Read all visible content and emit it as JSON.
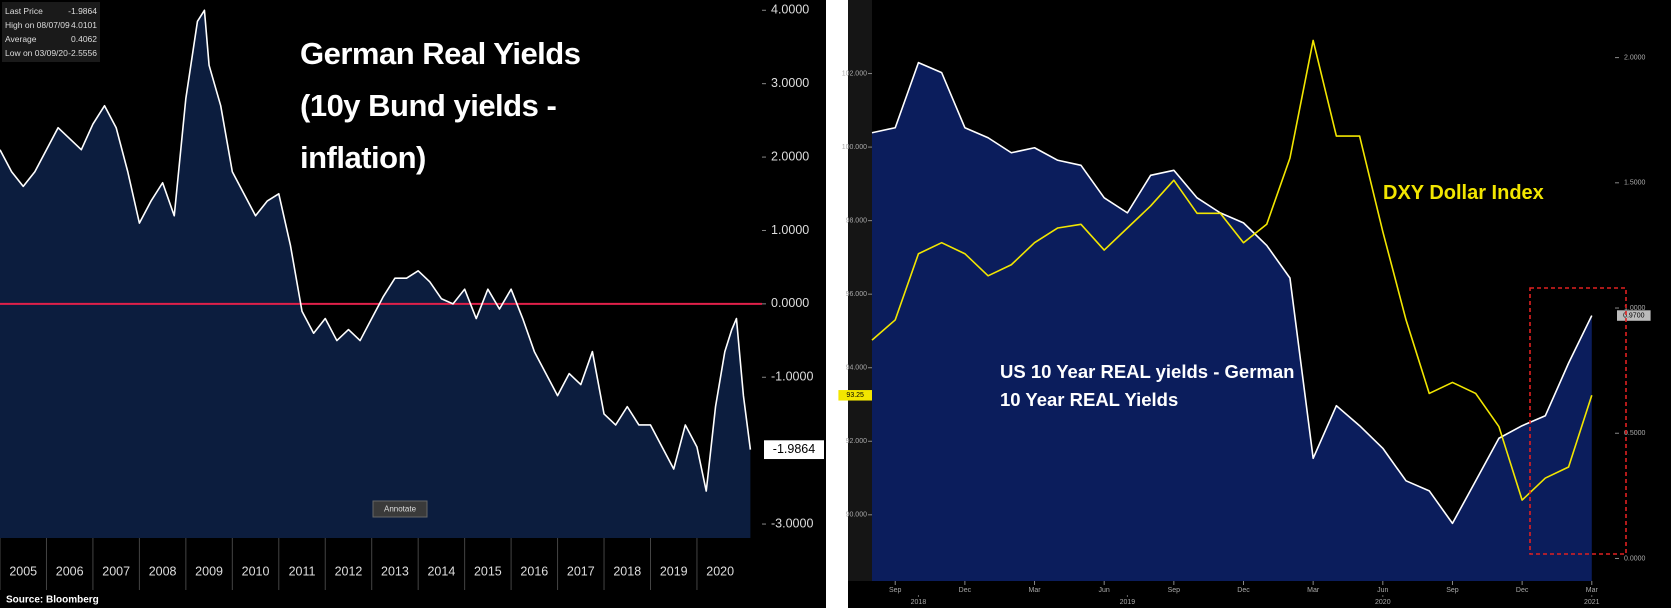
{
  "chart_data": [
    {
      "type": "line",
      "title": "German Real Yields (10y Bund yields - inflation)",
      "source": "Source: Bloomberg",
      "annotate_button": "Annotate",
      "stats": [
        {
          "label": "Last Price",
          "value": "-1.9864"
        },
        {
          "label": "High on 08/07/09",
          "value": "4.0101"
        },
        {
          "label": "Average",
          "value": "0.4062"
        },
        {
          "label": "Low on 03/09/20",
          "value": "-2.5556"
        }
      ],
      "x": [
        2005,
        2005.25,
        2005.5,
        2005.75,
        2006,
        2006.25,
        2006.5,
        2006.75,
        2007,
        2007.25,
        2007.5,
        2007.75,
        2008,
        2008.25,
        2008.5,
        2008.75,
        2009,
        2009.25,
        2009.4,
        2009.5,
        2009.75,
        2010,
        2010.25,
        2010.5,
        2010.75,
        2011,
        2011.25,
        2011.5,
        2011.75,
        2012,
        2012.25,
        2012.5,
        2012.75,
        2013,
        2013.25,
        2013.5,
        2013.75,
        2014,
        2014.25,
        2014.5,
        2014.75,
        2015,
        2015.25,
        2015.5,
        2015.75,
        2016,
        2016.25,
        2016.5,
        2016.75,
        2017,
        2017.25,
        2017.5,
        2017.75,
        2018,
        2018.25,
        2018.5,
        2018.75,
        2019,
        2019.25,
        2019.5,
        2019.75,
        2020,
        2020.2,
        2020.4,
        2020.6,
        2020.75,
        2020.85,
        2021,
        2021.15
      ],
      "values": [
        2.1,
        1.8,
        1.6,
        1.8,
        2.1,
        2.4,
        2.25,
        2.1,
        2.45,
        2.7,
        2.4,
        1.8,
        1.1,
        1.4,
        1.65,
        1.2,
        2.8,
        3.85,
        4.0,
        3.25,
        2.7,
        1.8,
        1.5,
        1.2,
        1.4,
        1.5,
        0.8,
        -0.1,
        -0.4,
        -0.2,
        -0.5,
        -0.35,
        -0.5,
        -0.2,
        0.1,
        0.35,
        0.35,
        0.45,
        0.3,
        0.07,
        0,
        0.2,
        -0.2,
        0.2,
        -0.07,
        0.2,
        -0.2,
        -0.65,
        -0.95,
        -1.25,
        -0.95,
        -1.1,
        -0.65,
        -1.5,
        -1.65,
        -1.4,
        -1.65,
        -1.65,
        -1.95,
        -2.25,
        -1.65,
        -1.95,
        -2.55,
        -1.4,
        -0.65,
        -0.35,
        -0.2,
        -1.25,
        -1.9864
      ],
      "color": "#ffffff",
      "area_color": "#0c1d3e",
      "last_value_label": "-1.9864",
      "xlim": [
        2005,
        2021.4
      ],
      "xticks": [
        2005,
        2006,
        2007,
        2008,
        2009,
        2010,
        2011,
        2012,
        2013,
        2014,
        2015,
        2016,
        2017,
        2018,
        2019,
        2020
      ],
      "ylim": [
        -3.19,
        4.14
      ],
      "yticks": [
        {
          "value": 4,
          "label": "4.0000"
        },
        {
          "value": 3,
          "label": "3.0000"
        },
        {
          "value": 2,
          "label": "2.0000"
        },
        {
          "value": 1,
          "label": "1.0000"
        },
        {
          "value": 0,
          "label": "0.0000"
        },
        {
          "value": -1,
          "label": "-1.0000"
        },
        {
          "value": -3,
          "label": "-3.0000"
        }
      ],
      "y_axis_side": "right",
      "hline": 0,
      "hline_color": "#e0204a"
    },
    {
      "type": "line",
      "x": [
        "2018-08",
        "2018-09",
        "2018-10",
        "2018-11",
        "2018-12",
        "2019-01",
        "2019-02",
        "2019-03",
        "2019-04",
        "2019-05",
        "2019-06",
        "2019-07",
        "2019-08",
        "2019-09",
        "2019-10",
        "2019-11",
        "2019-12",
        "2020-01",
        "2020-02",
        "2020-03",
        "2020-04",
        "2020-05",
        "2020-06",
        "2020-07",
        "2020-08",
        "2020-09",
        "2020-10",
        "2020-11",
        "2020-12",
        "2021-01",
        "2021-02",
        "2021-03"
      ],
      "series": [
        {
          "name": "US 10 Year REAL yields - German 10 Year REAL Yields",
          "color": "#ffffff",
          "area_color": "#0b1d5c",
          "axis": "y2",
          "values": [
            1.7,
            1.72,
            1.98,
            1.94,
            1.72,
            1.68,
            1.62,
            1.64,
            1.59,
            1.57,
            1.44,
            1.38,
            1.53,
            1.55,
            1.44,
            1.38,
            1.34,
            1.25,
            1.12,
            0.4,
            0.61,
            0.53,
            0.44,
            0.31,
            0.27,
            0.14,
            0.31,
            0.48,
            0.53,
            0.57,
            0.78,
            0.97
          ],
          "last_value_label": "0.9700"
        },
        {
          "name": "DXY Dollar Index",
          "color": "#f2e600",
          "values": [
            94.75,
            95.3,
            97.1,
            97.4,
            97.1,
            96.5,
            96.8,
            97.4,
            97.8,
            97.9,
            97.2,
            97.8,
            98.4,
            99.1,
            98.2,
            98.2,
            97.4,
            97.9,
            99.7,
            102.9,
            100.3,
            100.3,
            97.7,
            95.3,
            93.3,
            93.6,
            93.3,
            92.4,
            90.4,
            91.0,
            91.3,
            93.25
          ],
          "last_value_label": "93.25"
        }
      ],
      "xlim": [
        "2018-08",
        "2021-04"
      ],
      "xticks": [
        {
          "value": "2018-09",
          "label": "Sep"
        },
        {
          "value": "2018-12",
          "label": "Dec"
        },
        {
          "value": "2019-03",
          "label": "Mar"
        },
        {
          "value": "2019-06",
          "label": "Jun"
        },
        {
          "value": "2019-09",
          "label": "Sep"
        },
        {
          "value": "2019-12",
          "label": "Dec"
        },
        {
          "value": "2020-03",
          "label": "Mar"
        },
        {
          "value": "2020-06",
          "label": "Jun"
        },
        {
          "value": "2020-09",
          "label": "Sep"
        },
        {
          "value": "2020-12",
          "label": "Dec"
        },
        {
          "value": "2021-03",
          "label": "Mar"
        }
      ],
      "year_ticks": [
        {
          "value": "2018-10",
          "label": "2018"
        },
        {
          "value": "2019-07",
          "label": "2019"
        },
        {
          "value": "2020-06",
          "label": "2020"
        },
        {
          "value": "2021-03",
          "label": "2021"
        }
      ],
      "ylim": [
        88.2,
        104
      ],
      "yticks": [
        {
          "value": 90,
          "label": "90.000"
        },
        {
          "value": 92,
          "label": "92.000"
        },
        {
          "value": 94,
          "label": "94.000"
        },
        {
          "value": 96,
          "label": "96.000"
        },
        {
          "value": 98,
          "label": "98.000"
        },
        {
          "value": 100,
          "label": "100.000"
        },
        {
          "value": 102,
          "label": "102.000"
        }
      ],
      "y_axis_side": "left",
      "y2lim": [
        -0.09,
        2.23
      ],
      "y2ticks": [
        {
          "value": 0,
          "label": "0.0000"
        },
        {
          "value": 0.5,
          "label": "0.5000"
        },
        {
          "value": 1,
          "label": "1.0000"
        },
        {
          "value": 1.5,
          "label": "1.5000"
        },
        {
          "value": 2,
          "label": "2.0000"
        }
      ]
    }
  ]
}
